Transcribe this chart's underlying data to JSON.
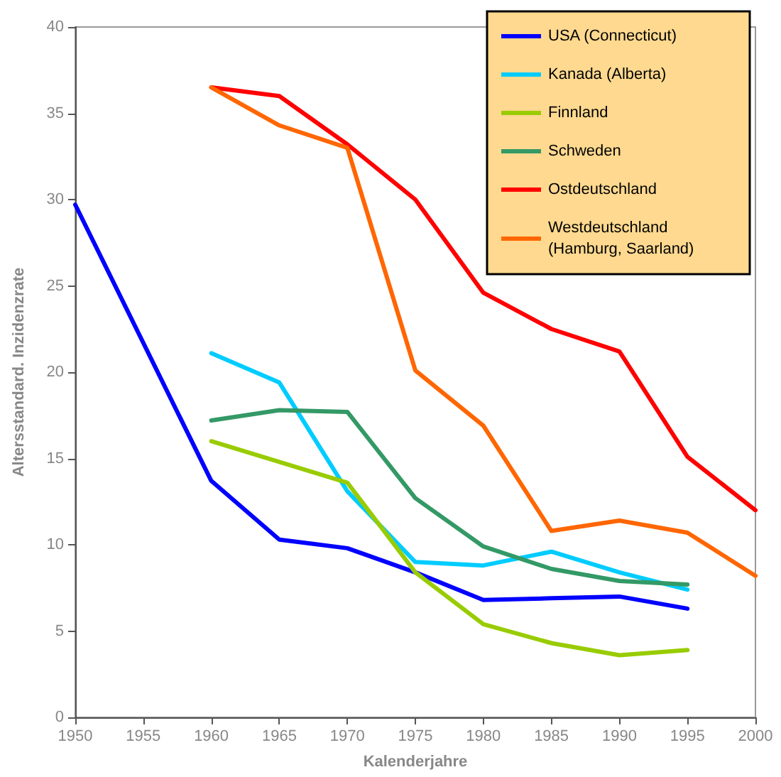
{
  "chart_data": {
    "type": "line",
    "xlabel": "Kalenderjahre",
    "ylabel": "Altersstandard. Inzidenzrate",
    "x": [
      1960,
      1965,
      1970,
      1975,
      1980,
      1985,
      1990,
      1995,
      2000
    ],
    "series": [
      {
        "name": "USA (Connecticut)",
        "color": "#0000ff",
        "x": [
          1950,
          1960,
          1965,
          1970,
          1975,
          1980,
          1985,
          1990,
          1995
        ],
        "values": [
          29.7,
          13.7,
          10.3,
          9.8,
          8.4,
          6.8,
          6.9,
          7.0,
          6.3
        ]
      },
      {
        "name": "Kanada (Alberta)",
        "color": "#00ccff",
        "values": [
          21.1,
          19.4,
          13.1,
          9.0,
          8.8,
          9.6,
          8.4,
          7.4,
          null
        ]
      },
      {
        "name": "Finnland",
        "color": "#99cc00",
        "values": [
          16.0,
          14.8,
          13.6,
          8.4,
          5.4,
          4.3,
          3.6,
          3.9,
          null
        ]
      },
      {
        "name": "Schweden",
        "color": "#339966",
        "values": [
          17.2,
          17.8,
          17.7,
          12.7,
          9.9,
          8.6,
          7.9,
          7.7,
          null
        ]
      },
      {
        "name": "Ostdeutschland",
        "color": "#ff0000",
        "values": [
          36.5,
          36.0,
          33.2,
          30.0,
          24.6,
          22.5,
          21.2,
          15.1,
          12.0
        ]
      },
      {
        "name": "Westdeutschland (Hamburg, Saarland)",
        "color": "#ff6600",
        "values": [
          36.5,
          34.3,
          33.0,
          20.1,
          16.9,
          10.8,
          11.4,
          10.7,
          8.2
        ]
      }
    ],
    "xlim": [
      1950,
      2000
    ],
    "xticks": [
      1950,
      1955,
      1960,
      1965,
      1970,
      1975,
      1980,
      1985,
      1990,
      1995,
      2000
    ],
    "ylim": [
      0,
      40
    ],
    "yticks": [
      0,
      5,
      10,
      15,
      20,
      25,
      30,
      35,
      40
    ],
    "grid": false,
    "legend": "top right",
    "marker": "none",
    "line_style": "solid"
  }
}
